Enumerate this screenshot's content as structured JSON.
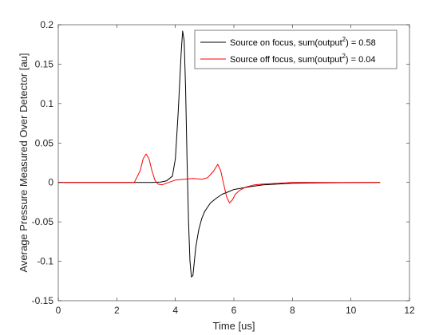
{
  "chart_data": {
    "type": "line",
    "xlabel": "Time [us]",
    "ylabel": "Average Pressure Measured Over Detector [au]",
    "xlim": [
      0,
      12
    ],
    "ylim": [
      -0.15,
      0.2
    ],
    "xticks": [
      0,
      2,
      4,
      6,
      8,
      10,
      12
    ],
    "yticks": [
      -0.15,
      -0.1,
      -0.05,
      0,
      0.05,
      0.1,
      0.15,
      0.2
    ],
    "xtick_labels": [
      "0",
      "2",
      "4",
      "6",
      "8",
      "10",
      "12"
    ],
    "ytick_labels": [
      "-0.15",
      "-0.1",
      "-0.05",
      "0",
      "0.05",
      "0.1",
      "0.15",
      "0.2"
    ],
    "grid": false,
    "legend_position": "top-right",
    "series": [
      {
        "name": "Source on focus, sum(output²) = 0.58",
        "legend": {
          "prefix": "Source on focus, sum(output",
          "sup": "2",
          "suffix": ") = 0.58"
        },
        "color": "#000000",
        "x": [
          0,
          2.6,
          3.2,
          3.5,
          3.7,
          3.9,
          4.0,
          4.1,
          4.2,
          4.25,
          4.3,
          4.35,
          4.4,
          4.45,
          4.5,
          4.55,
          4.6,
          4.65,
          4.7,
          4.8,
          4.9,
          5.0,
          5.2,
          5.4,
          5.6,
          5.8,
          6.0,
          6.3,
          6.6,
          7.0,
          7.5,
          8.0,
          9.0,
          10.0,
          11.0
        ],
        "y": [
          0,
          0,
          0,
          0.0005,
          0.002,
          0.008,
          0.03,
          0.09,
          0.165,
          0.192,
          0.18,
          0.12,
          0.03,
          -0.05,
          -0.1,
          -0.12,
          -0.118,
          -0.1,
          -0.082,
          -0.06,
          -0.046,
          -0.037,
          -0.026,
          -0.02,
          -0.015,
          -0.012,
          -0.009,
          -0.007,
          -0.005,
          -0.003,
          -0.002,
          -0.001,
          -0.0005,
          -0.0002,
          0
        ]
      },
      {
        "name": "Source off focus, sum(output²) = 0.04",
        "legend": {
          "prefix": "Source off focus, sum(output",
          "sup": "2",
          "suffix": ") = 0.04"
        },
        "color": "#ff0000",
        "x": [
          0,
          2.6,
          2.8,
          2.9,
          3.0,
          3.1,
          3.2,
          3.3,
          3.4,
          3.55,
          3.7,
          3.85,
          4.0,
          4.3,
          4.6,
          4.9,
          5.1,
          5.3,
          5.45,
          5.55,
          5.65,
          5.75,
          5.85,
          5.95,
          6.05,
          6.2,
          6.4,
          6.7,
          7.0,
          7.5,
          8.0,
          9.0,
          10.0,
          11.0
        ],
        "y": [
          0,
          0,
          0.015,
          0.03,
          0.036,
          0.03,
          0.015,
          0.003,
          -0.002,
          -0.003,
          -0.001,
          0.001,
          0.003,
          0.004,
          0.005,
          0.004,
          0.006,
          0.014,
          0.023,
          0.015,
          -0.002,
          -0.018,
          -0.026,
          -0.022,
          -0.015,
          -0.01,
          -0.006,
          -0.003,
          -0.002,
          -0.001,
          0,
          0,
          0,
          0
        ]
      }
    ]
  }
}
